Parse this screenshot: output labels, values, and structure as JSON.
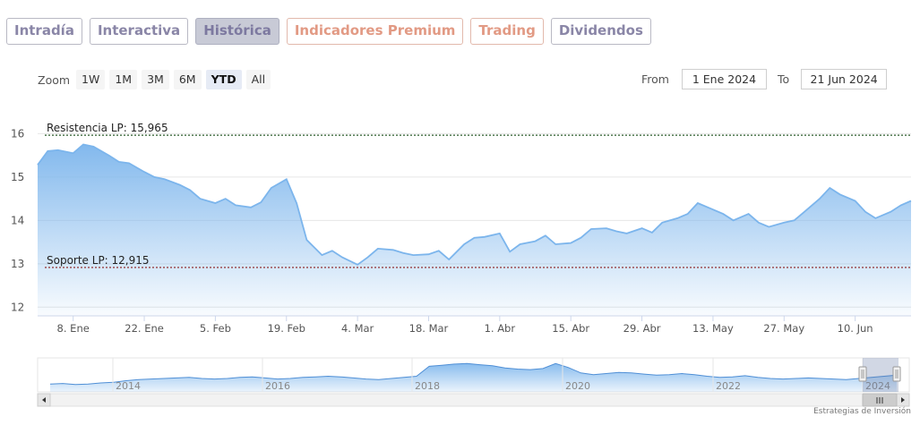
{
  "tabs": [
    {
      "label": "Intradía",
      "style": "purple"
    },
    {
      "label": "Interactiva",
      "style": "purple"
    },
    {
      "label": "Histórica",
      "style": "active"
    },
    {
      "label": "Indicadores Premium",
      "style": "salmon"
    },
    {
      "label": "Trading",
      "style": "salmon"
    },
    {
      "label": "Dividendos",
      "style": "purple"
    }
  ],
  "zoom": {
    "label": "Zoom",
    "buttons": [
      "1W",
      "1M",
      "3M",
      "6M",
      "YTD",
      "All"
    ],
    "selected": "YTD"
  },
  "range": {
    "from_label": "From",
    "from_value": "1 Ene 2024",
    "to_label": "To",
    "to_value": "21 Jun 2024"
  },
  "credits": "Estrategias de Inversión",
  "colors": {
    "series": "#7cb5ec",
    "resistance_line": "#2b5b2b",
    "support_line": "#8b1a1a"
  },
  "chart_data": {
    "type": "area",
    "title": "",
    "xlabel": "",
    "ylabel": "",
    "ylim": [
      11.8,
      16.4
    ],
    "y_ticks": [
      12,
      13,
      14,
      15,
      16
    ],
    "x_tick_labels": [
      "8. Ene",
      "22. Ene",
      "5. Feb",
      "19. Feb",
      "4. Mar",
      "18. Mar",
      "1. Abr",
      "15. Abr",
      "29. Abr",
      "13. May",
      "27. May",
      "10. Jun"
    ],
    "x_range": [
      "2024-01-01",
      "2024-06-21"
    ],
    "series": [
      {
        "x": [
          "2024-01-01",
          "2024-01-03",
          "2024-01-05",
          "2024-01-08",
          "2024-01-10",
          "2024-01-12",
          "2024-01-15",
          "2024-01-17",
          "2024-01-19",
          "2024-01-22",
          "2024-01-24",
          "2024-01-26",
          "2024-01-29",
          "2024-01-31",
          "2024-02-02",
          "2024-02-05",
          "2024-02-07",
          "2024-02-09",
          "2024-02-12",
          "2024-02-14",
          "2024-02-16",
          "2024-02-19",
          "2024-02-21",
          "2024-02-23",
          "2024-02-26",
          "2024-02-28",
          "2024-03-01",
          "2024-03-04",
          "2024-03-06",
          "2024-03-08",
          "2024-03-11",
          "2024-03-13",
          "2024-03-15",
          "2024-03-18",
          "2024-03-20",
          "2024-03-22",
          "2024-03-25",
          "2024-03-27",
          "2024-03-29",
          "2024-04-01",
          "2024-04-03",
          "2024-04-05",
          "2024-04-08",
          "2024-04-10",
          "2024-04-12",
          "2024-04-15",
          "2024-04-17",
          "2024-04-19",
          "2024-04-22",
          "2024-04-24",
          "2024-04-26",
          "2024-04-29",
          "2024-05-01",
          "2024-05-03",
          "2024-05-06",
          "2024-05-08",
          "2024-05-10",
          "2024-05-13",
          "2024-05-15",
          "2024-05-17",
          "2024-05-20",
          "2024-05-22",
          "2024-05-24",
          "2024-05-27",
          "2024-05-29",
          "2024-05-31",
          "2024-06-03",
          "2024-06-05",
          "2024-06-07",
          "2024-06-10",
          "2024-06-12",
          "2024-06-14",
          "2024-06-17",
          "2024-06-19",
          "2024-06-21"
        ],
        "values": [
          15.28,
          15.6,
          15.62,
          15.55,
          15.75,
          15.7,
          15.5,
          15.35,
          15.32,
          15.12,
          15.0,
          14.95,
          14.82,
          14.7,
          14.5,
          14.4,
          14.5,
          14.35,
          14.3,
          14.42,
          14.75,
          14.95,
          14.4,
          13.55,
          13.2,
          13.3,
          13.15,
          12.98,
          13.15,
          13.35,
          13.32,
          13.25,
          13.2,
          13.22,
          13.3,
          13.1,
          13.45,
          13.6,
          13.62,
          13.7,
          13.28,
          13.45,
          13.52,
          13.65,
          13.45,
          13.48,
          13.6,
          13.8,
          13.82,
          13.75,
          13.7,
          13.82,
          13.72,
          13.95,
          14.05,
          14.15,
          14.4,
          14.25,
          14.15,
          14.0,
          14.15,
          13.95,
          13.85,
          13.95,
          14.0,
          14.2,
          14.5,
          14.75,
          14.6,
          14.45,
          14.2,
          14.05,
          14.2,
          14.35,
          14.45
        ]
      }
    ],
    "annotations": [
      {
        "label": "Resistencia LP: 15,965",
        "value": 15.965
      },
      {
        "label": "Soporte LP: 12,915",
        "value": 12.915
      }
    ],
    "grid": true,
    "navigator": {
      "year_labels": [
        "2014",
        "2016",
        "2018",
        "2020",
        "2022",
        "2024"
      ],
      "values": [
        12.6,
        12.7,
        12.5,
        12.6,
        12.8,
        12.9,
        13.2,
        13.4,
        13.5,
        13.6,
        13.7,
        13.8,
        13.6,
        13.5,
        13.6,
        13.8,
        13.9,
        13.7,
        13.5,
        13.6,
        13.8,
        13.9,
        14.0,
        13.9,
        13.7,
        13.5,
        13.4,
        13.6,
        13.8,
        14.0,
        15.8,
        16.0,
        16.2,
        16.3,
        16.1,
        15.9,
        15.5,
        15.3,
        15.2,
        15.4,
        16.3,
        15.6,
        14.6,
        14.3,
        14.5,
        14.7,
        14.6,
        14.4,
        14.2,
        14.3,
        14.5,
        14.3,
        14.0,
        13.8,
        13.9,
        14.1,
        13.8,
        13.6,
        13.5,
        13.6,
        13.7,
        13.6,
        13.5,
        13.4,
        13.6,
        13.8,
        14.0,
        14.2
      ]
    }
  }
}
